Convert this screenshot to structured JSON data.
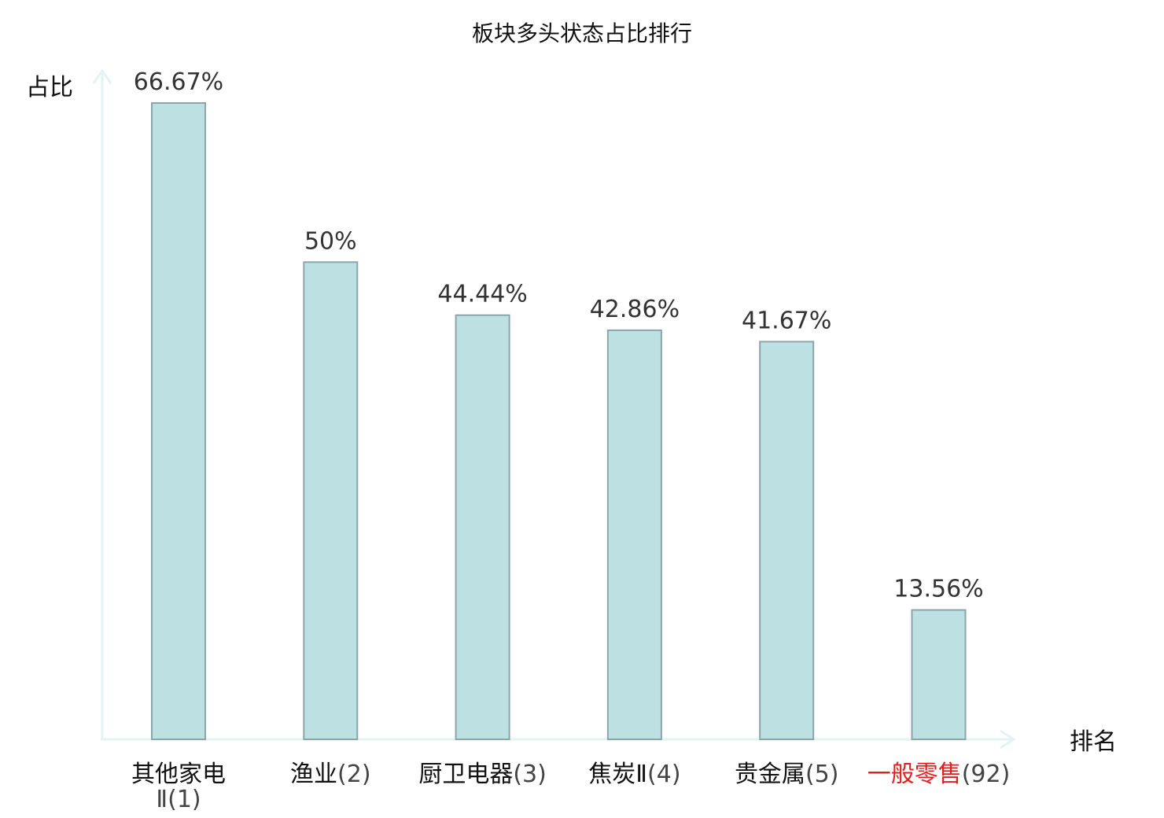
{
  "chart_data": {
    "type": "bar",
    "title": "板块多头状态占比排行",
    "ylabel": "占比",
    "xlabel": "排名",
    "ylim": [
      0,
      66.67
    ],
    "grid": false,
    "colors": {
      "bar_fill": "#bde0e3",
      "bar_stroke": "#8aa6aa",
      "axis": "#e3f3f1",
      "highlight": "#e02020",
      "text": "#111111"
    },
    "categories": [
      {
        "name": "其他家电",
        "name_line2": "Ⅱ",
        "rank": "(1)",
        "value": 66.67,
        "label": "66.67%",
        "highlight": false
      },
      {
        "name": "渔业",
        "name_line2": "",
        "rank": "(2)",
        "value": 50,
        "label": "50%",
        "highlight": false
      },
      {
        "name": "厨卫电器",
        "name_line2": "",
        "rank": "(3)",
        "value": 44.44,
        "label": "44.44%",
        "highlight": false
      },
      {
        "name": "焦炭Ⅱ",
        "name_line2": "",
        "rank": "(4)",
        "value": 42.86,
        "label": "42.86%",
        "highlight": false
      },
      {
        "name": "贵金属",
        "name_line2": "",
        "rank": "(5)",
        "value": 41.67,
        "label": "41.67%",
        "highlight": false
      },
      {
        "name": "一般零售",
        "name_line2": "",
        "rank": "(92)",
        "value": 13.56,
        "label": "13.56%",
        "highlight": true
      }
    ]
  }
}
